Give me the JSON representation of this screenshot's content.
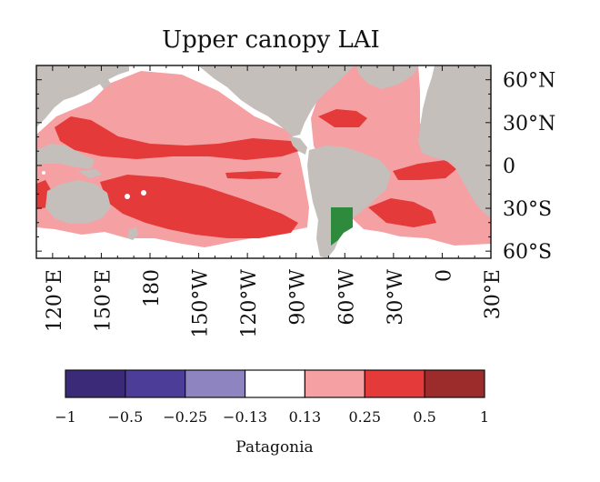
{
  "title": "Upper canopy LAI",
  "map": {
    "lat_labels": [
      "60°N",
      "30°N",
      "0",
      "30°S",
      "60°S"
    ],
    "lat_values": [
      60,
      30,
      0,
      -30,
      -60
    ],
    "lon_labels": [
      "120°E",
      "150°E",
      "180",
      "150°W",
      "120°W",
      "90°W",
      "60°W",
      "30°W",
      "0",
      "30°E"
    ],
    "lon_values": [
      120,
      150,
      180,
      210,
      240,
      270,
      300,
      330,
      360,
      390
    ],
    "lon_range": [
      110,
      390
    ],
    "lat_range": [
      -65,
      70
    ],
    "land_color": "#c4bfbb",
    "highlight_region_color": "#2e8b3e",
    "highlight_region_label": "Patagonia"
  },
  "colorbar": {
    "tick_labels": [
      "−1",
      "−0.5",
      "−0.25",
      "−0.13",
      "0.13",
      "0.25",
      "0.5",
      "1"
    ],
    "bins": [
      {
        "from": -1,
        "to": -0.5,
        "color": "#3a2a78"
      },
      {
        "from": -0.5,
        "to": -0.25,
        "color": "#4c3e98"
      },
      {
        "from": -0.25,
        "to": -0.13,
        "color": "#8e84c0"
      },
      {
        "from": -0.13,
        "to": 0.13,
        "color": "#ffffff"
      },
      {
        "from": 0.13,
        "to": 0.25,
        "color": "#f5a0a3"
      },
      {
        "from": 0.25,
        "to": 0.5,
        "color": "#e43a3a"
      },
      {
        "from": 0.5,
        "to": 1,
        "color": "#9c2b2b"
      }
    ],
    "caption": "Patagonia"
  }
}
